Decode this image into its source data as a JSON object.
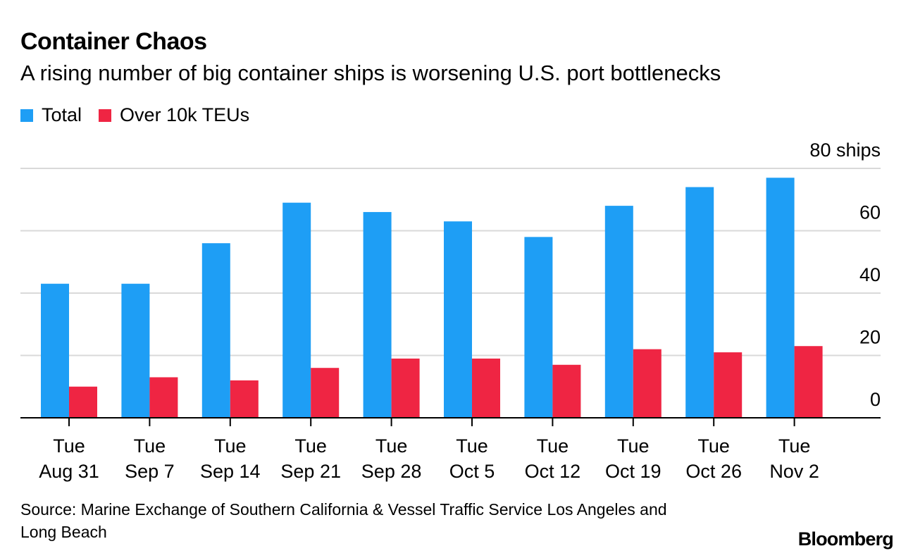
{
  "title": "Container Chaos",
  "subtitle": "A rising number of big container ships is worsening U.S. port bottlenecks",
  "source": "Source: Marine Exchange of Southern California & Vessel Traffic Service Los Angeles and Long Beach",
  "brand": "Bloomberg",
  "colors": {
    "total": "#1e9ef5",
    "over10k": "#ef2543",
    "grid": "#d9d9d9",
    "axis": "#000000"
  },
  "chart_data": {
    "type": "bar",
    "categories": [
      [
        "Tue",
        "Aug 31"
      ],
      [
        "Tue",
        "Sep 7"
      ],
      [
        "Tue",
        "Sep 14"
      ],
      [
        "Tue",
        "Sep 21"
      ],
      [
        "Tue",
        "Sep 28"
      ],
      [
        "Tue",
        "Oct 5"
      ],
      [
        "Tue",
        "Oct 12"
      ],
      [
        "Tue",
        "Oct 19"
      ],
      [
        "Tue",
        "Oct 26"
      ],
      [
        "Tue",
        "Nov 2"
      ]
    ],
    "series": [
      {
        "name": "Total",
        "values": [
          43,
          43,
          56,
          69,
          66,
          63,
          58,
          68,
          74,
          77
        ]
      },
      {
        "name": "Over 10k TEUs",
        "values": [
          10,
          13,
          12,
          16,
          19,
          19,
          17,
          22,
          21,
          23
        ]
      }
    ],
    "ylim": [
      0,
      80
    ],
    "yticks": [
      0,
      20,
      40,
      60,
      80
    ],
    "ytick_labels": [
      "0",
      "20",
      "40",
      "60",
      "80 ships"
    ],
    "grid": true,
    "legend": "top-left"
  }
}
